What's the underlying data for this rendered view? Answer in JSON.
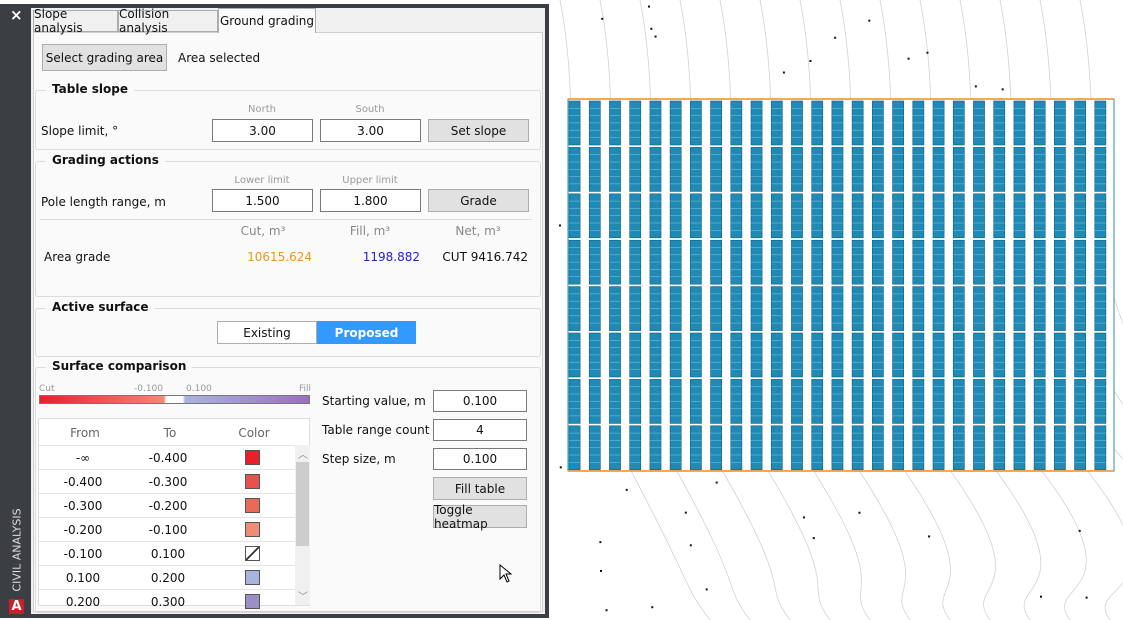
{
  "sidebar": {
    "title": "CIVIL ANALYSIS",
    "close": "×",
    "logo": "A"
  },
  "tabs": [
    "Slope analysis",
    "Collision analysis",
    "Ground grading"
  ],
  "selection": {
    "button": "Select grading area",
    "status": "Area selected"
  },
  "table_slope": {
    "heading": "Table slope",
    "label": "Slope limit, °",
    "north_label": "North",
    "south_label": "South",
    "north": "3.00",
    "south": "3.00",
    "button": "Set slope"
  },
  "grading_actions": {
    "heading": "Grading actions",
    "label": "Pole length range, m",
    "lower_label": "Lower limit",
    "upper_label": "Upper limit",
    "lower": "1.500",
    "upper": "1.800",
    "button": "Grade",
    "columns": [
      "Cut, m³",
      "Fill, m³",
      "Net, m³"
    ],
    "row": {
      "name": "Area grade",
      "cut": "10615.624",
      "fill": "1198.882",
      "net": "CUT 9416.742"
    }
  },
  "active_surface": {
    "heading": "Active surface",
    "options": [
      "Existing",
      "Proposed"
    ]
  },
  "surface_comparison": {
    "heading": "Surface comparison",
    "legend": {
      "cut": "Cut",
      "low": "-0.100",
      "high": "0.100",
      "fill": "Fill"
    },
    "columns": [
      "From",
      "To",
      "Color"
    ],
    "rows": [
      {
        "from": "-∞",
        "to": "-0.400",
        "color": "#e8202a"
      },
      {
        "from": "-0.400",
        "to": "-0.300",
        "color": "#e9504e"
      },
      {
        "from": "-0.300",
        "to": "-0.200",
        "color": "#ea6a5a"
      },
      {
        "from": "-0.200",
        "to": "-0.100",
        "color": "#ef8c78"
      },
      {
        "from": "-0.100",
        "to": "0.100"
      },
      {
        "from": "0.100",
        "to": "0.200",
        "color": "#a9b4de"
      },
      {
        "from": "0.200",
        "to": "0.300",
        "color": "#9c8fc8"
      }
    ],
    "fields": [
      {
        "label": "Starting value, m",
        "value": "0.100"
      },
      {
        "label": "Table range count",
        "value": "4"
      },
      {
        "label": "Step size, m",
        "value": "0.100"
      }
    ],
    "buttons": [
      "Fill table",
      "Toggle heatmap"
    ]
  }
}
